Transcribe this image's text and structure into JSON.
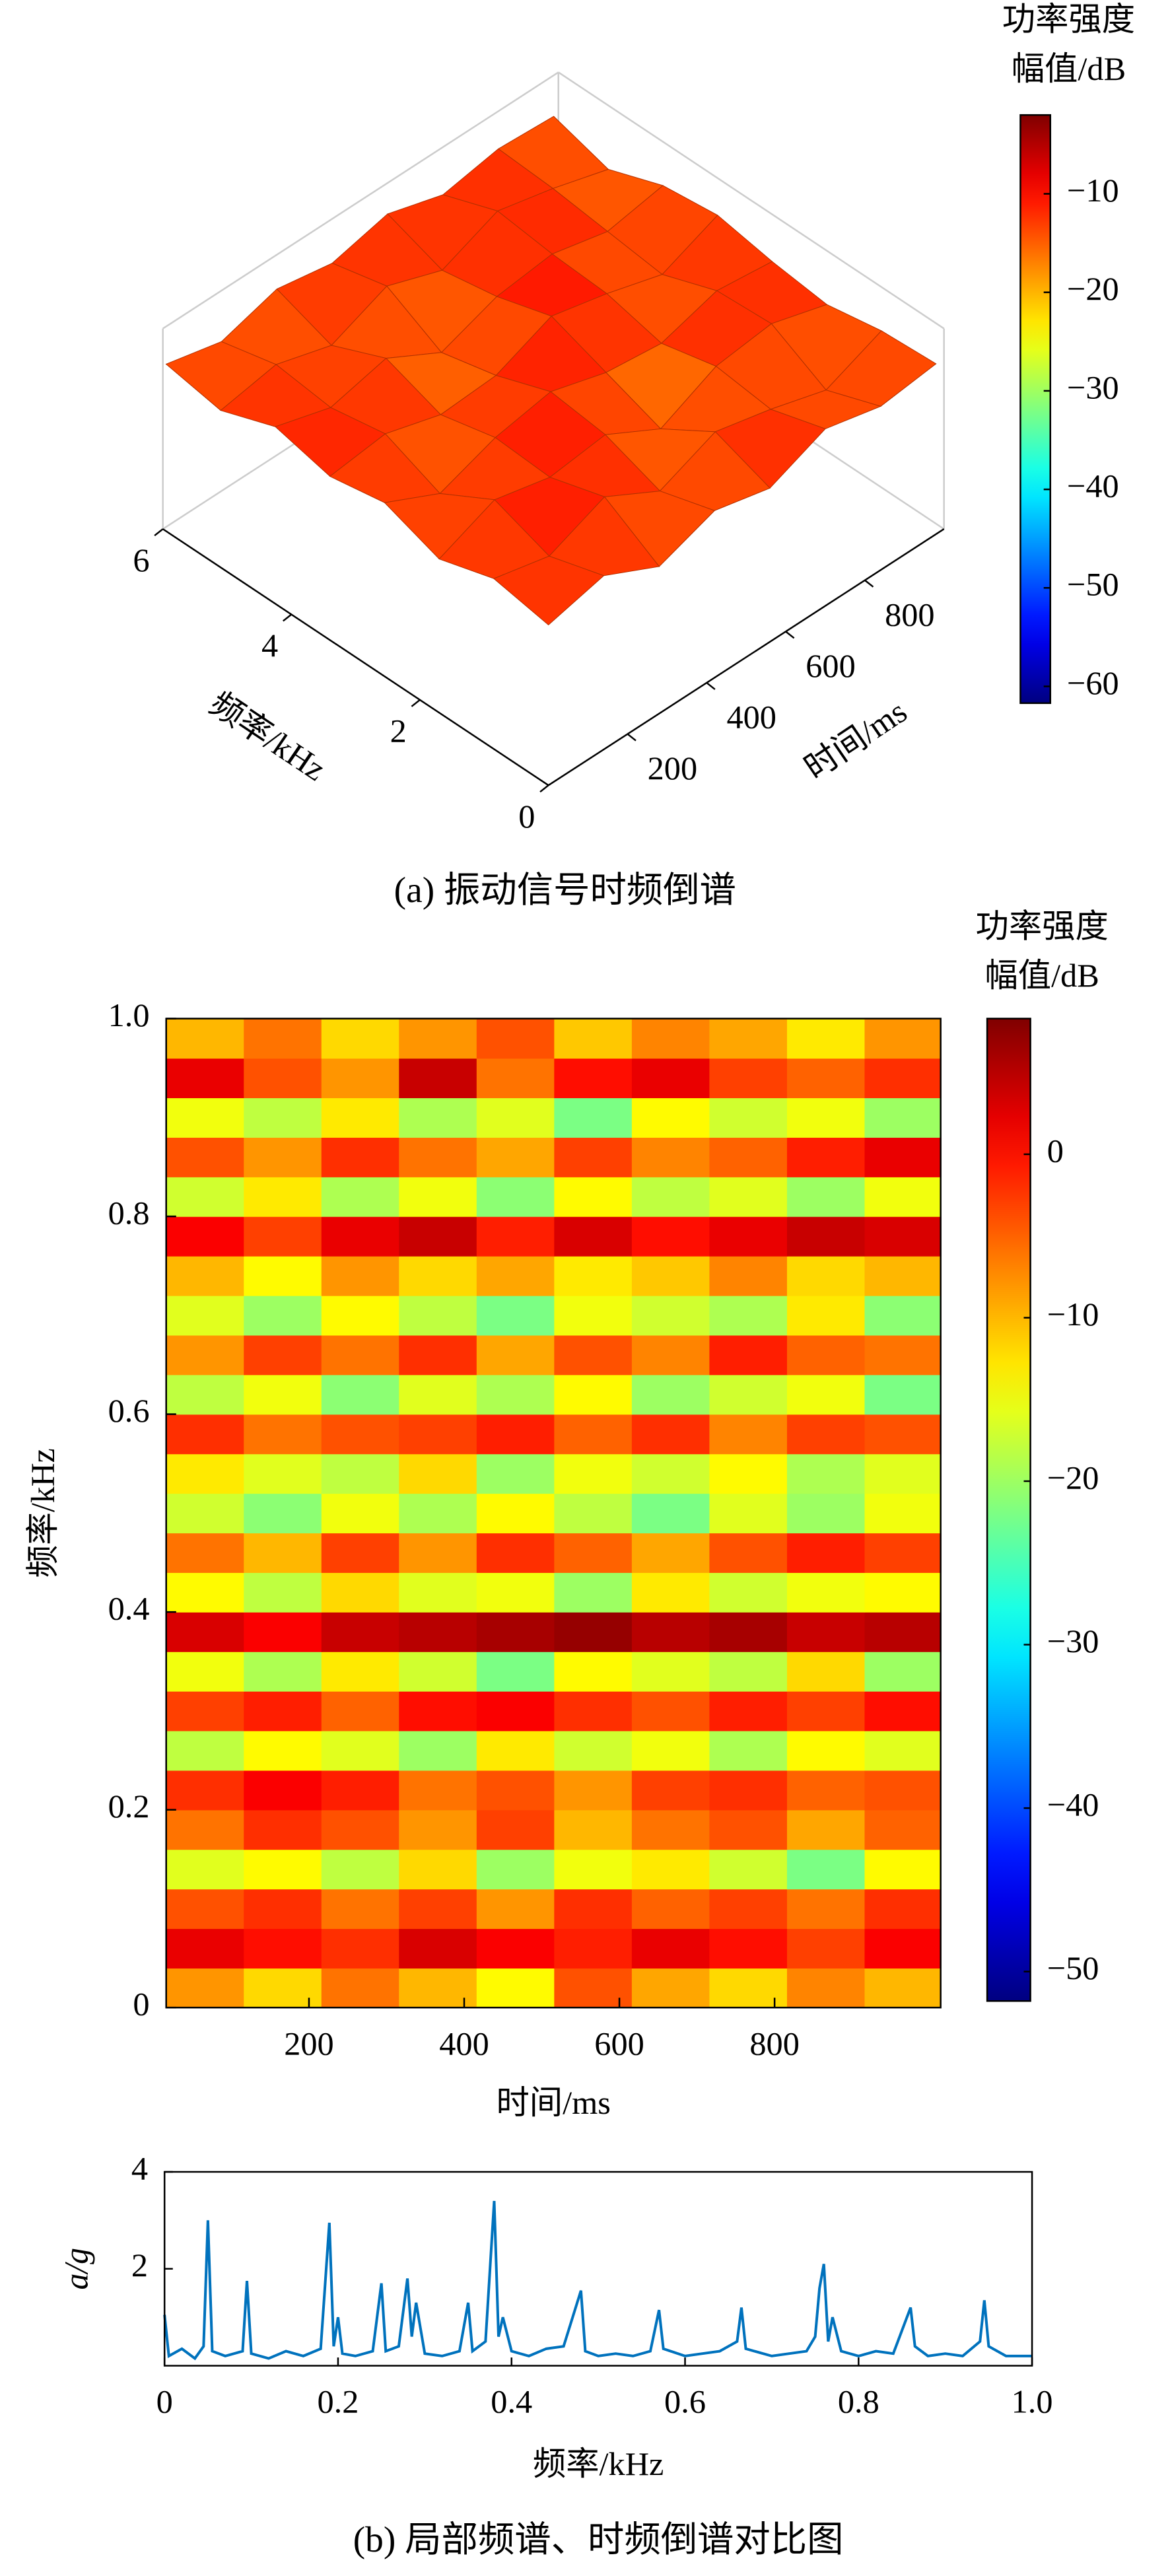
{
  "chart_data": [
    {
      "type": "surface",
      "caption": "(a) 振动信号时频倒谱",
      "xlabel": "时间/ms",
      "ylabel": "频率/kHz",
      "colorbar_title": [
        "功率强度",
        "幅值/dB"
      ],
      "colormap": "jet",
      "x": [
        0,
        140,
        280,
        420,
        560,
        700,
        840,
        980
      ],
      "y": [
        0,
        0.85,
        1.7,
        2.55,
        3.4,
        4.25,
        5.1,
        5.95
      ],
      "z": [
        [
          -14,
          -10,
          -18,
          -12,
          -16,
          -9,
          -13,
          -11
        ],
        [
          -11,
          -15,
          -8,
          -17,
          -10,
          -14,
          -19,
          -12
        ],
        [
          -16,
          -9,
          -13,
          -11,
          -20,
          -12,
          -10,
          -15
        ],
        [
          -10,
          -18,
          -12,
          -9,
          -14,
          -16,
          -11,
          -13
        ],
        [
          -13,
          -11,
          -16,
          -15,
          -8,
          -12,
          -17,
          -10
        ],
        [
          -9,
          -14,
          -10,
          -19,
          -13,
          -11,
          -15,
          -12
        ],
        [
          -15,
          -12,
          -17,
          -10,
          -16,
          -9,
          -13,
          -18
        ],
        [
          -12,
          -16,
          -11,
          -14,
          -10,
          -15,
          -12,
          -13
        ]
      ],
      "xlim": [
        0,
        1000
      ],
      "ylim": [
        0,
        6
      ],
      "zlim": [
        -62,
        -2
      ],
      "xticks": [
        200,
        400,
        600,
        800
      ],
      "yticks": [
        0,
        2,
        4,
        6
      ],
      "clim": [
        -61.7,
        -2
      ],
      "cticks": [
        {
          "value": -60,
          "label": "−60"
        },
        {
          "value": -50,
          "label": "−50"
        },
        {
          "value": -40,
          "label": "−40"
        },
        {
          "value": -30,
          "label": "−30"
        },
        {
          "value": -20,
          "label": "−20"
        },
        {
          "value": -10,
          "label": "−10"
        }
      ]
    },
    {
      "type": "heatmap",
      "xlabel": "时间/ms",
      "ylabel": "频率/kHz",
      "colorbar_title": [
        "功率强度",
        "幅值/dB"
      ],
      "colormap": "jet",
      "x": [
        66,
        166,
        266,
        366,
        466,
        566,
        666,
        766,
        866,
        966
      ],
      "y": [
        0.02,
        0.06,
        0.1,
        0.14,
        0.18,
        0.22,
        0.26,
        0.3,
        0.34,
        0.38,
        0.42,
        0.46,
        0.5,
        0.54,
        0.58,
        0.62,
        0.66,
        0.7,
        0.74,
        0.78,
        0.82,
        0.86,
        0.9,
        0.94,
        0.98
      ],
      "z": [
        [
          -8,
          -12,
          -6,
          -10,
          -14,
          -4,
          -9,
          -12,
          -7,
          -10
        ],
        [
          2,
          0,
          -2,
          3,
          1,
          -1,
          2,
          0,
          -3,
          1
        ],
        [
          -4,
          -2,
          -6,
          -3,
          -8,
          -2,
          -5,
          -3,
          -6,
          -2
        ],
        [
          -16,
          -14,
          -18,
          -12,
          -20,
          -15,
          -13,
          -17,
          -22,
          -14
        ],
        [
          -6,
          -2,
          -4,
          -8,
          -3,
          -10,
          -6,
          -4,
          -9,
          -5
        ],
        [
          -2,
          1,
          -1,
          -6,
          -4,
          -8,
          -3,
          -2,
          -5,
          -4
        ],
        [
          -18,
          -14,
          -16,
          -20,
          -13,
          -17,
          -15,
          -19,
          -14,
          -16
        ],
        [
          -3,
          -1,
          -5,
          0,
          1,
          -2,
          -4,
          -1,
          -3,
          0
        ],
        [
          -15,
          -19,
          -13,
          -17,
          -22,
          -14,
          -16,
          -18,
          -12,
          -20
        ],
        [
          3,
          1,
          4,
          5,
          6,
          7,
          5,
          6,
          4,
          5
        ],
        [
          -14,
          -18,
          -12,
          -16,
          -15,
          -20,
          -13,
          -17,
          -15,
          -14
        ],
        [
          -6,
          -10,
          -3,
          -8,
          -2,
          -5,
          -9,
          -4,
          -1,
          -3
        ],
        [
          -17,
          -21,
          -15,
          -19,
          -14,
          -18,
          -22,
          -16,
          -20,
          -15
        ],
        [
          -13,
          -16,
          -18,
          -12,
          -20,
          -15,
          -17,
          -14,
          -19,
          -16
        ],
        [
          -2,
          -6,
          -4,
          -3,
          -1,
          -5,
          -2,
          -7,
          -3,
          -4
        ],
        [
          -18,
          -15,
          -21,
          -16,
          -19,
          -14,
          -20,
          -17,
          -15,
          -22
        ],
        [
          -8,
          -3,
          -6,
          -2,
          -9,
          -4,
          -7,
          -1,
          -5,
          -6
        ],
        [
          -16,
          -20,
          -14,
          -18,
          -22,
          -15,
          -17,
          -19,
          -13,
          -21
        ],
        [
          -10,
          -14,
          -8,
          -12,
          -9,
          -13,
          -11,
          -7,
          -12,
          -10
        ],
        [
          1,
          -3,
          2,
          4,
          -1,
          3,
          0,
          2,
          4,
          3
        ],
        [
          -17,
          -13,
          -19,
          -15,
          -21,
          -14,
          -18,
          -16,
          -20,
          -15
        ],
        [
          -4,
          -8,
          -2,
          -6,
          -9,
          -3,
          -7,
          -5,
          -1,
          2
        ],
        [
          -15,
          -18,
          -13,
          -19,
          -16,
          -22,
          -14,
          -17,
          -15,
          -20
        ],
        [
          2,
          -4,
          -8,
          4,
          -6,
          0,
          2,
          -3,
          -5,
          -2
        ],
        [
          -10,
          -6,
          -12,
          -8,
          -4,
          -11,
          -7,
          -9,
          -13,
          -8
        ]
      ],
      "xlim": [
        16,
        1014
      ],
      "ylim": [
        0,
        1
      ],
      "xticks": [
        200,
        400,
        600,
        800
      ],
      "yticks": [
        0,
        0.2,
        0.4,
        0.6,
        0.8,
        {
          "value": 1,
          "label": "1.0"
        }
      ],
      "clim": [
        -51.8,
        8.3
      ],
      "cticks": [
        {
          "value": -50,
          "label": "−50"
        },
        {
          "value": -40,
          "label": "−40"
        },
        {
          "value": -30,
          "label": "−30"
        },
        {
          "value": -20,
          "label": "−20"
        },
        {
          "value": -10,
          "label": "−10"
        },
        0
      ]
    },
    {
      "type": "line",
      "xlabel": "频率/kHz",
      "ylabel": "a/g",
      "caption": "(b) 局部频谱、时频倒谱对比图",
      "color": "#0072bd",
      "x": [
        0,
        0.005,
        0.02,
        0.035,
        0.045,
        0.05,
        0.055,
        0.07,
        0.09,
        0.095,
        0.1,
        0.12,
        0.14,
        0.16,
        0.18,
        0.19,
        0.195,
        0.2,
        0.205,
        0.22,
        0.24,
        0.25,
        0.255,
        0.27,
        0.28,
        0.285,
        0.29,
        0.3,
        0.32,
        0.34,
        0.35,
        0.355,
        0.37,
        0.38,
        0.385,
        0.39,
        0.4,
        0.42,
        0.44,
        0.46,
        0.48,
        0.485,
        0.5,
        0.52,
        0.54,
        0.56,
        0.57,
        0.575,
        0.6,
        0.62,
        0.64,
        0.66,
        0.665,
        0.67,
        0.7,
        0.72,
        0.74,
        0.75,
        0.755,
        0.76,
        0.765,
        0.77,
        0.78,
        0.8,
        0.82,
        0.84,
        0.86,
        0.865,
        0.88,
        0.9,
        0.92,
        0.94,
        0.945,
        0.95,
        0.97,
        1.0
      ],
      "values": [
        1.05,
        0.2,
        0.35,
        0.15,
        0.4,
        3.0,
        0.3,
        0.2,
        0.3,
        1.75,
        0.25,
        0.15,
        0.3,
        0.2,
        0.35,
        2.95,
        0.4,
        1.0,
        0.25,
        0.2,
        0.3,
        1.7,
        0.3,
        0.4,
        1.8,
        0.6,
        1.3,
        0.25,
        0.2,
        0.3,
        1.3,
        0.3,
        0.5,
        3.4,
        0.6,
        1.0,
        0.3,
        0.2,
        0.35,
        0.4,
        1.55,
        0.3,
        0.2,
        0.25,
        0.2,
        0.3,
        1.15,
        0.35,
        0.2,
        0.25,
        0.3,
        0.5,
        1.2,
        0.35,
        0.2,
        0.25,
        0.3,
        0.6,
        1.6,
        2.1,
        0.5,
        1.0,
        0.3,
        0.2,
        0.3,
        0.25,
        1.2,
        0.4,
        0.2,
        0.25,
        0.2,
        0.5,
        1.35,
        0.4,
        0.2,
        0.2
      ],
      "xlim": [
        0,
        1
      ],
      "ylim": [
        0,
        4
      ],
      "xticks": [
        0,
        0.2,
        0.4,
        0.6,
        0.8,
        {
          "value": 1,
          "label": "1.0"
        }
      ],
      "yticks": [
        2,
        4
      ]
    }
  ]
}
